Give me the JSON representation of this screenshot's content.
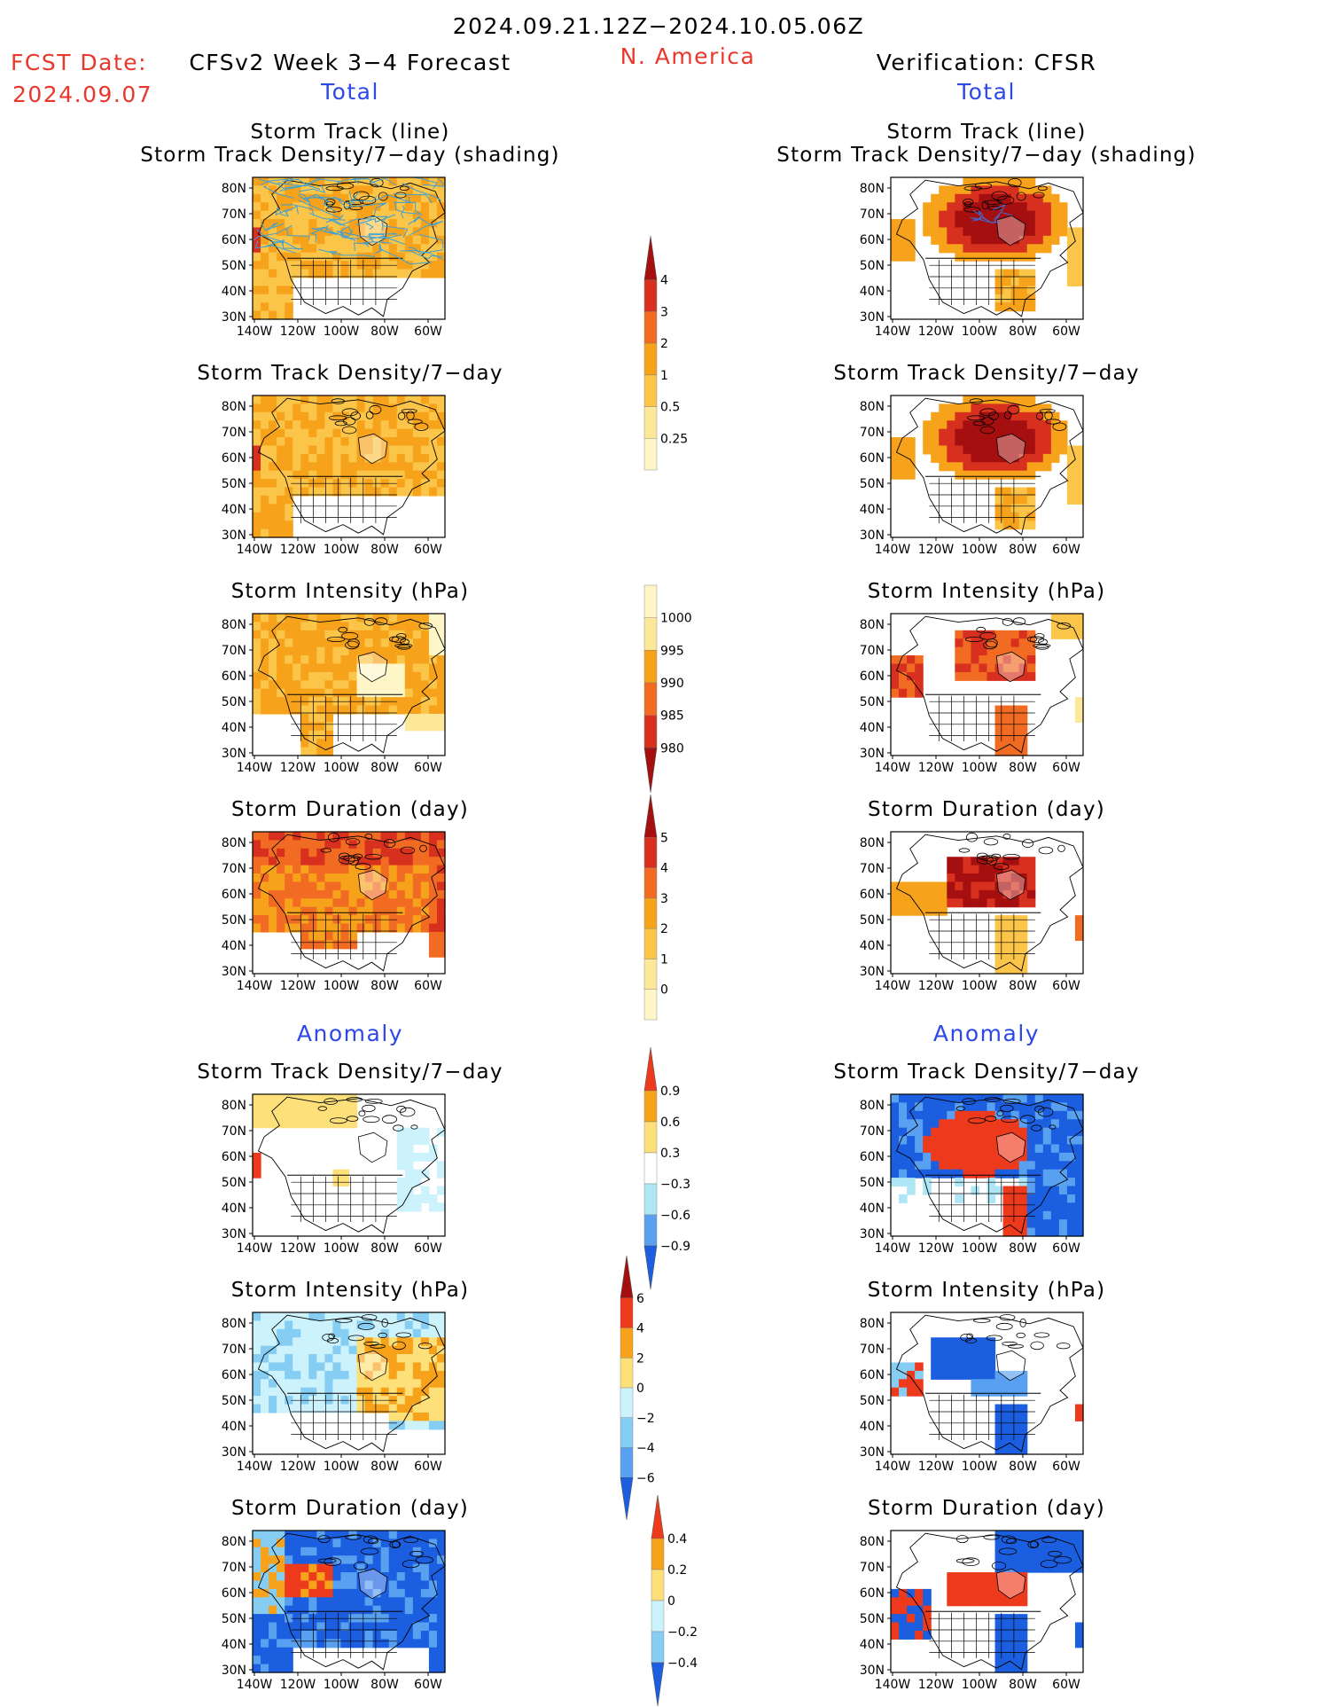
{
  "header": {
    "period": "2024.09.21.12Z−2024.10.05.06Z",
    "fcst_label": "FCST Date:",
    "fcst_date": "2024.09.07",
    "model": "CFSv2 Week 3−4 Forecast",
    "region": "N. America",
    "verification": "Verification: CFSR"
  },
  "sections": {
    "total_left": "Total",
    "total_right": "Total",
    "anomaly_left": "Anomaly",
    "anomaly_right": "Anomaly"
  },
  "panel_titles": {
    "track_line": "Storm Track (line)",
    "track_shading": "Storm Track Density/7−day (shading)",
    "density": "Storm Track Density/7−day",
    "intensity": "Storm Intensity (hPa)",
    "duration": "Storm Duration (day)"
  },
  "axis_labels": {
    "lat": [
      "80N",
      "70N",
      "60N",
      "50N",
      "40N",
      "30N"
    ],
    "lon": [
      "140W",
      "120W",
      "100W",
      "80W",
      "60W"
    ]
  },
  "colorbars": {
    "density_total": {
      "labels": [
        "4",
        "3",
        "2",
        "1",
        "0.5",
        "0.25"
      ],
      "colors": [
        "#a50f0f",
        "#d7301f",
        "#f26b22",
        "#f7a21b",
        "#fbc54a",
        "#fde89a",
        "#fff6c8"
      ]
    },
    "intensity_total": {
      "labels": [
        "1000",
        "995",
        "990",
        "985",
        "980"
      ],
      "colors": [
        "#fff6c8",
        "#fde89a",
        "#f7a21b",
        "#f26b22",
        "#d7301f",
        "#a50f0f"
      ]
    },
    "duration_total": {
      "labels": [
        "5",
        "4",
        "3",
        "2",
        "1",
        "0"
      ],
      "colors": [
        "#a50f0f",
        "#d7301f",
        "#f26b22",
        "#f7a21b",
        "#fbc54a",
        "#fde89a",
        "#fff6c8"
      ]
    },
    "density_anom": {
      "labels": [
        "0.9",
        "0.6",
        "0.3",
        "−0.3",
        "−0.6",
        "−0.9"
      ],
      "colors": [
        "#ee3a1c",
        "#f7a21b",
        "#fde07a",
        "#ffffff",
        "#aee6f5",
        "#5aa0f0",
        "#1b5fe0"
      ]
    },
    "intensity_anom": {
      "labels": [
        "6",
        "4",
        "2",
        "0",
        "−2",
        "−4",
        "−6"
      ],
      "colors": [
        "#a50f0f",
        "#ee3a1c",
        "#f7a21b",
        "#fde07a",
        "#ccf2fb",
        "#86cdf3",
        "#5aa0f0",
        "#1b5fe0"
      ]
    },
    "duration_anom": {
      "labels": [
        "0.4",
        "0.2",
        "0",
        "−0.2",
        "−0.4"
      ],
      "colors": [
        "#ee3a1c",
        "#f7a21b",
        "#fde07a",
        "#ccf2fb",
        "#86cdf3",
        "#1b5fe0"
      ]
    }
  },
  "palette": {
    "heading_red": "#e8382b",
    "heading_blue": "#2c48e6",
    "track_line": "#3aa0d8"
  }
}
